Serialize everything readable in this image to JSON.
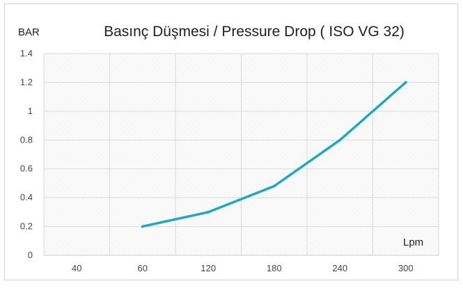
{
  "chart_data": {
    "type": "line",
    "title": "Basınç Düşmesi / Pressure Drop ( ISO VG 32)",
    "ylabel": "BAR",
    "xlabel": "Lpm",
    "categories": [
      "40",
      "60",
      "120",
      "180",
      "240",
      "300"
    ],
    "series": [
      {
        "values": [
          null,
          0.2,
          0.3,
          0.48,
          0.8,
          1.2
        ],
        "color": "#1fa8c4"
      }
    ],
    "ylim": [
      0,
      1.4
    ],
    "yticks": [
      0,
      0.2,
      0.4,
      0.6,
      0.8,
      1,
      1.2,
      1.4
    ],
    "ytick_labels": [
      "0",
      "0.2",
      "0.4",
      "0.6",
      "0.8",
      "1",
      "1.2",
      "1.4"
    ],
    "grid": true,
    "legend": "none"
  }
}
